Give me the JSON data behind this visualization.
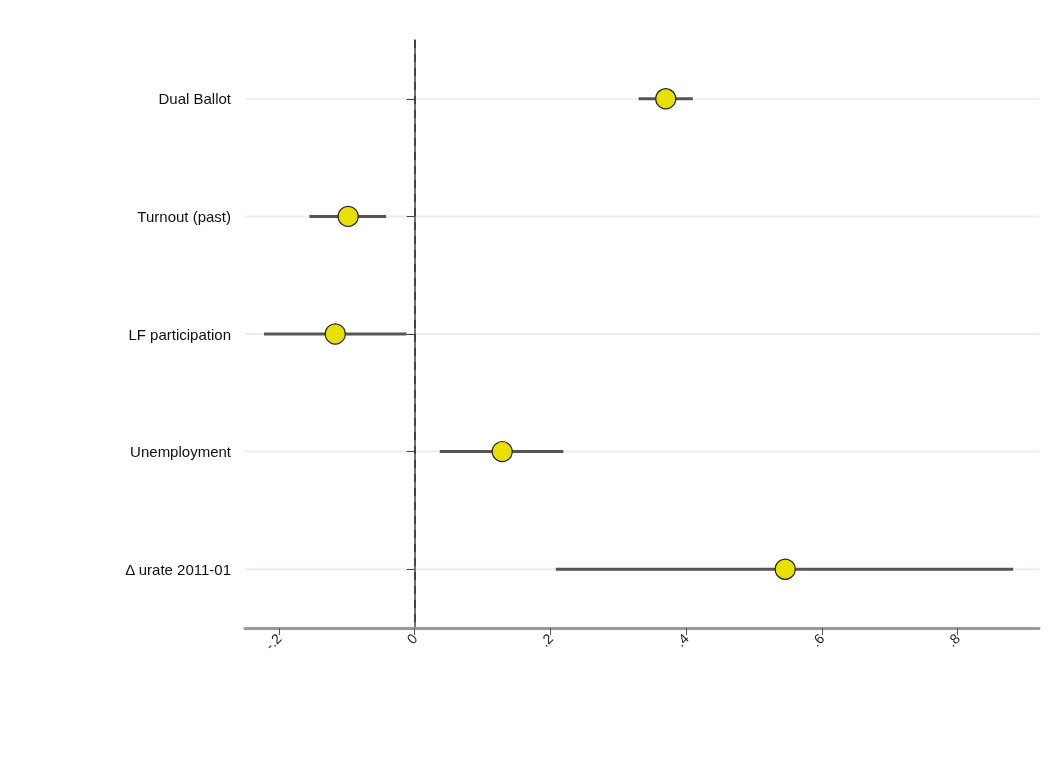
{
  "chart_data": {
    "type": "scatter",
    "orientation": "horizontal",
    "categories": [
      "Dual Ballot",
      "Turnout (past)",
      "LF participation",
      "Unemployment",
      "Δ urate 2011-01"
    ],
    "series": [
      {
        "color": "#e8e000",
        "values": [
          0.37,
          -0.098,
          -0.117,
          0.129,
          0.546
        ],
        "errors": [
          [
            0.33,
            0.41
          ],
          [
            -0.155,
            -0.042
          ],
          [
            -0.222,
            -0.012
          ],
          [
            0.037,
            0.219
          ],
          [
            0.208,
            0.882
          ]
        ]
      }
    ],
    "xlim": [
      -0.25,
      0.92
    ],
    "xticks": [
      {
        "value": -0.2,
        "label": "-.2"
      },
      0,
      {
        "value": 0.2,
        "label": ".2"
      },
      {
        "value": 0.4,
        "label": ".4"
      },
      {
        "value": 0.6,
        "label": ".6"
      },
      {
        "value": 0.8,
        "label": ".8"
      }
    ],
    "ref_lines": [
      {
        "axis": "x",
        "value": 0,
        "line_style": "dashed",
        "color": "#333333"
      }
    ],
    "grid": "y",
    "marker": "circle"
  }
}
